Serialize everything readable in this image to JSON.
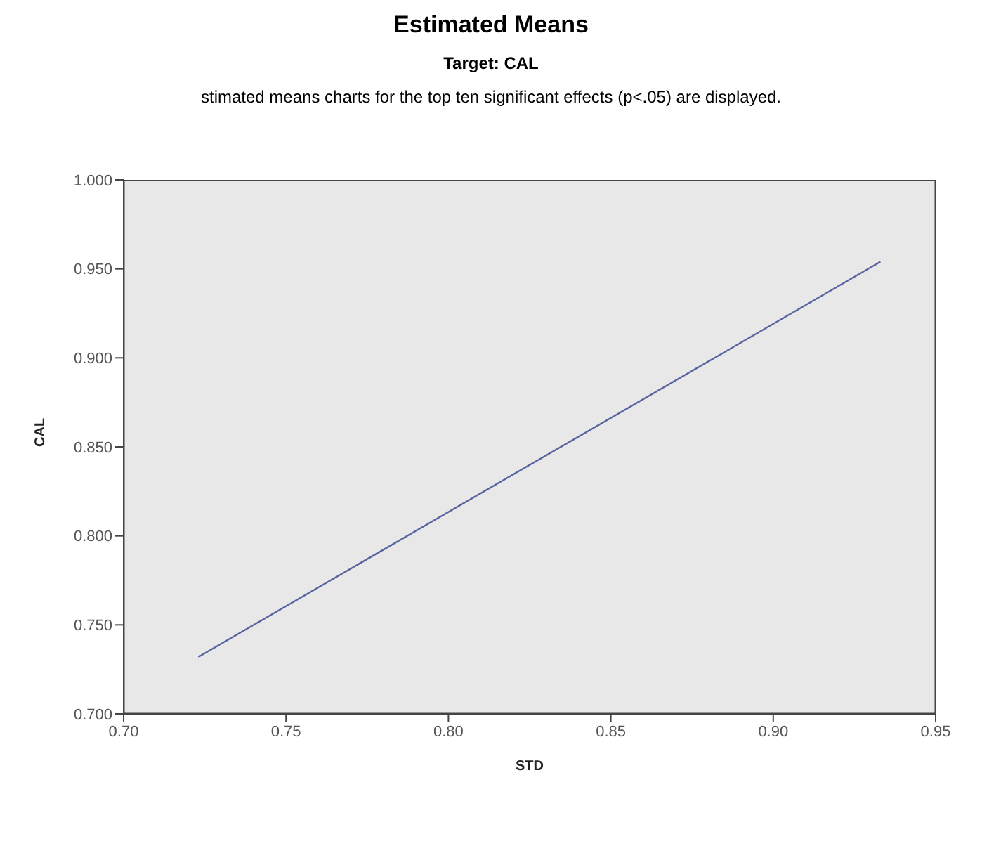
{
  "chart_data": {
    "type": "line",
    "title": "Estimated Means",
    "subtitle": "Target: CAL",
    "annotations": [
      "stimated means charts for the top ten significant effects (p<.05) are displayed."
    ],
    "xlabel": "STD",
    "ylabel": "CAL",
    "x": [
      0.723,
      0.933
    ],
    "series": [
      {
        "color": "#5a64a0",
        "values": [
          0.732,
          0.954
        ]
      }
    ],
    "xlim": [
      0.7,
      0.95
    ],
    "xticks": [
      {
        "value": 0.7,
        "label": "0.70"
      },
      {
        "value": 0.75,
        "label": "0.75"
      },
      {
        "value": 0.8,
        "label": "0.80"
      },
      {
        "value": 0.85,
        "label": "0.85"
      },
      {
        "value": 0.9,
        "label": "0.90"
      },
      {
        "value": 0.95,
        "label": "0.95"
      }
    ],
    "ylim": [
      0.7,
      1.0
    ],
    "yticks": [
      {
        "value": 0.7,
        "label": "0.700"
      },
      {
        "value": 0.75,
        "label": "0.750"
      },
      {
        "value": 0.8,
        "label": "0.800"
      },
      {
        "value": 0.85,
        "label": "0.850"
      },
      {
        "value": 0.9,
        "label": "0.900"
      },
      {
        "value": 0.95,
        "label": "0.950"
      },
      {
        "value": 1.0,
        "label": "1.000"
      }
    ],
    "grid": false,
    "marker": "none",
    "line_style": "solid"
  }
}
